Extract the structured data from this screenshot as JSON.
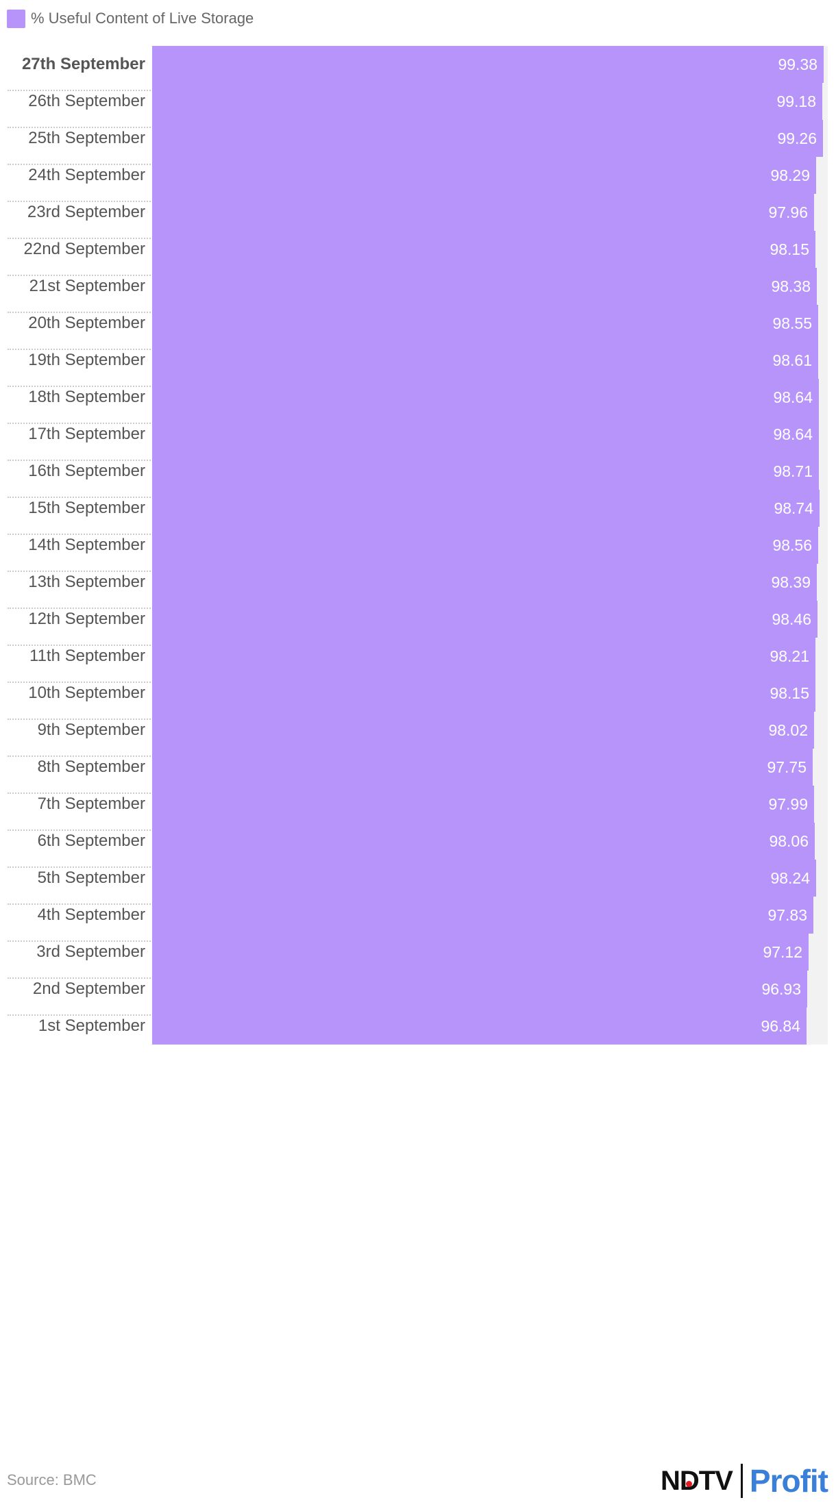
{
  "legend": {
    "label": "% Useful Content of Live Storage",
    "color": "#b794fa"
  },
  "chart_data": {
    "type": "bar",
    "orientation": "horizontal",
    "categories": [
      "27th September",
      "26th September",
      "25th September",
      "24th September",
      "23rd September",
      "22nd September",
      "21st September",
      "20th September",
      "19th September",
      "18th September",
      "17th September",
      "16th September",
      "15th September",
      "14th September",
      "13th September",
      "12th September",
      "11th September",
      "10th September",
      "9th September",
      "8th September",
      "7th September",
      "6th September",
      "5th September",
      "4th September",
      "3rd September",
      "2nd September",
      "1st September"
    ],
    "series": [
      {
        "name": "% Useful Content of Live Storage",
        "color": "#b794fa",
        "values": [
          99.38,
          99.18,
          99.26,
          98.29,
          97.96,
          98.15,
          98.38,
          98.55,
          98.61,
          98.64,
          98.64,
          98.71,
          98.74,
          98.56,
          98.39,
          98.46,
          98.21,
          98.15,
          98.02,
          97.75,
          97.99,
          98.06,
          98.24,
          97.83,
          97.12,
          96.93,
          96.84
        ]
      }
    ],
    "xlim": [
      0,
      100
    ],
    "highlight_category": "27th September"
  },
  "footer": {
    "source": "Source: BMC",
    "logo_left": "NDTV",
    "logo_right": "Profit"
  }
}
